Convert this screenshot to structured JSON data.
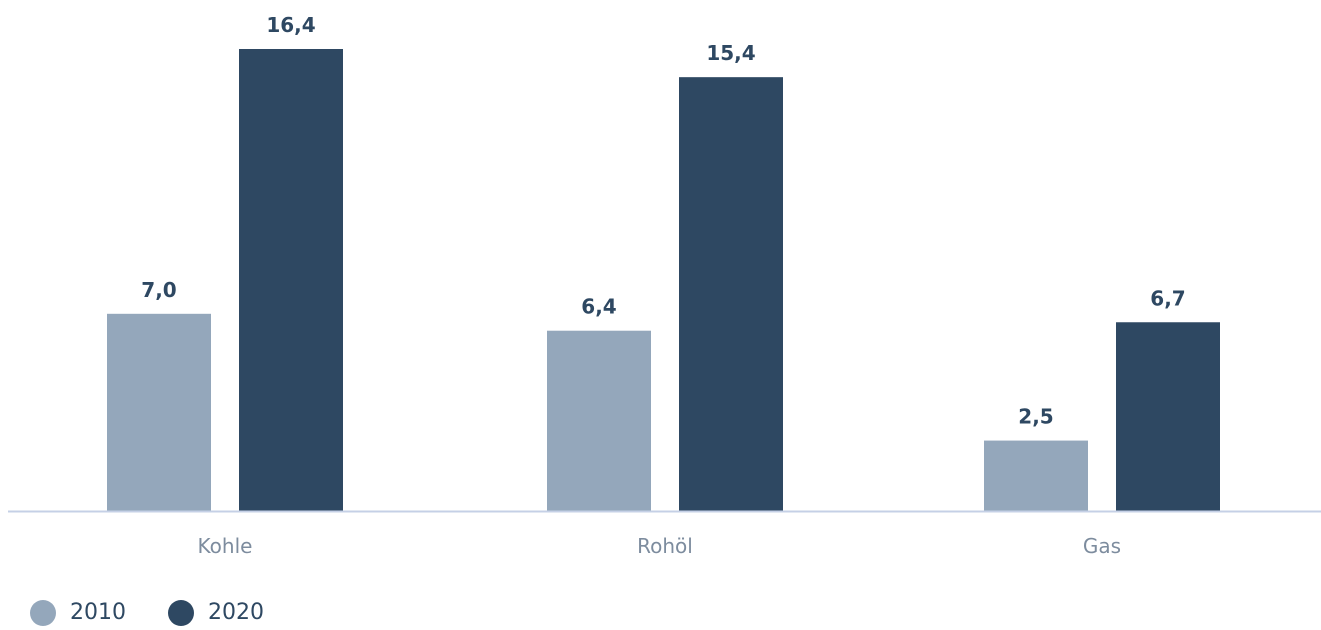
{
  "chart_data": {
    "type": "bar",
    "categories": [
      "Kohle",
      "Rohöl",
      "Gas"
    ],
    "series": [
      {
        "name": "2010",
        "values": [
          7.0,
          6.4,
          2.5
        ],
        "labels": [
          "7,0",
          "6,4",
          "2,5"
        ],
        "color": "#94a7bb"
      },
      {
        "name": "2020",
        "values": [
          16.4,
          15.4,
          6.7
        ],
        "labels": [
          "16,4",
          "15,4",
          "6,7"
        ],
        "color": "#2e4862"
      }
    ],
    "ylim": [
      0,
      16.4
    ],
    "grid": false,
    "legend_position": "bottom-left",
    "axis_color": "#c5d0e6"
  }
}
